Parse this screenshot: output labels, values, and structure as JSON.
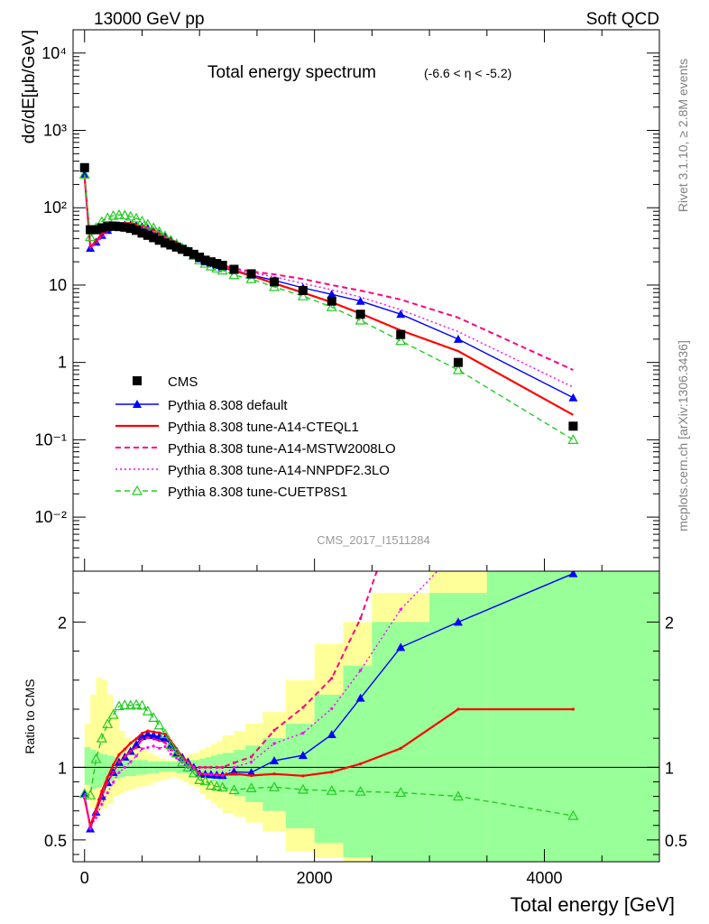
{
  "header": {
    "left": "13000 GeV pp",
    "right": "Soft QCD"
  },
  "side_labels": {
    "rivet": "Rivet 3.1.10, ≥ 2.8M events",
    "site": "mcplots.cern.ch [arXiv:1306.3436]"
  },
  "analysis_tag": "CMS_2017_I1511284",
  "colors": {
    "cms": "#000000",
    "default": "#0000ff",
    "cteql1": "#ff0000",
    "mstw": "#ff0080",
    "nnpdf": "#ff00ff",
    "cuetp8s1": "#22cc22",
    "band_inner": "#99ff99",
    "band_outer": "#ffff99"
  },
  "chart_data": [
    {
      "type": "line",
      "title": "Total energy spectrum",
      "title_suffix": "(-6.6 < η < -5.2)",
      "xlabel": "",
      "ylabel": "dσ/dE[μb/GeV]",
      "yscale": "log",
      "xlim": [
        -100,
        5000
      ],
      "ylim": [
        0.002,
        20000
      ],
      "y_tick_labels": [
        "10⁴",
        "10³",
        "10²",
        "10",
        "1",
        "10⁻¹",
        "10⁻²"
      ],
      "legend_position": "bottom-left",
      "x": [
        0,
        50,
        100,
        150,
        200,
        250,
        300,
        350,
        400,
        450,
        500,
        550,
        600,
        650,
        700,
        750,
        800,
        850,
        900,
        950,
        1000,
        1050,
        1100,
        1150,
        1200,
        1300,
        1450,
        1650,
        1900,
        2150,
        2400,
        2750,
        3250,
        4250
      ],
      "cms": [
        330,
        52,
        52,
        55,
        57,
        58,
        57,
        56,
        54,
        51,
        47,
        44,
        41,
        38,
        35,
        33,
        31,
        29,
        27,
        25,
        23,
        21,
        20,
        19,
        18,
        16,
        14,
        11,
        8.5,
        6.2,
        4.2,
        2.3,
        1.0,
        0.15
      ],
      "series": [
        {
          "name": "Pythia 8.308 default",
          "key": "default",
          "style": "solid",
          "marker": "filled-triangle",
          "color": "#0000ff",
          "values": [
            270,
            30,
            36,
            44,
            51,
            56,
            59,
            60,
            60,
            59,
            57,
            54,
            50,
            46,
            42,
            38,
            34,
            31,
            28,
            25,
            22,
            20,
            19,
            18,
            17,
            15.5,
            13.5,
            11.5,
            9.2,
            7.6,
            6.2,
            4.2,
            2.0,
            0.35
          ]
        },
        {
          "name": "Pythia 8.308 tune-A14-CTEQL1",
          "key": "cteql1",
          "style": "solid",
          "marker": "none",
          "color": "#ff0000",
          "values": [
            260,
            31,
            37,
            46,
            53,
            59,
            62,
            63,
            63,
            61,
            58,
            55,
            51,
            47,
            43,
            39,
            35,
            31,
            28,
            25,
            22,
            20,
            19,
            18,
            17,
            15.3,
            13.2,
            10.5,
            8.0,
            6.0,
            4.3,
            2.6,
            1.4,
            0.21
          ]
        },
        {
          "name": "Pythia 8.308 tune-A14-MSTW2008LO",
          "key": "mstw",
          "style": "dashed",
          "marker": "none",
          "color": "#ff0080",
          "values": [
            262,
            31,
            36,
            44,
            51,
            56,
            59,
            60,
            60,
            58,
            56,
            53,
            49,
            45,
            41,
            37,
            34,
            31,
            28,
            25,
            23,
            21,
            20,
            19,
            18,
            16.5,
            15.0,
            13.8,
            12.0,
            10.0,
            8.5,
            6.5,
            3.8,
            0.8
          ]
        },
        {
          "name": "Pythia 8.308 tune-A14-NNPDF2.3LO",
          "key": "nnpdf",
          "style": "dotted",
          "marker": "none",
          "color": "#ff00ff",
          "values": [
            265,
            30,
            34,
            41,
            47,
            52,
            55,
            56,
            56,
            55,
            53,
            50,
            47,
            43,
            40,
            36,
            33,
            30,
            27,
            25,
            22,
            20,
            19,
            18,
            17,
            16,
            14.5,
            12.8,
            10.5,
            8.7,
            7.0,
            4.8,
            2.5,
            0.48
          ]
        },
        {
          "name": "Pythia 8.308 tune-CUETP8S1",
          "key": "cuetp8s1",
          "style": "dashed",
          "marker": "open-triangle",
          "color": "#22cc22",
          "values": [
            270,
            42,
            55,
            66,
            74,
            79,
            81,
            80,
            77,
            73,
            67,
            61,
            55,
            49,
            43,
            38,
            34,
            30,
            27,
            24,
            21,
            19,
            17.5,
            16.5,
            15.5,
            13.5,
            12.0,
            9.5,
            7.2,
            5.2,
            3.5,
            1.9,
            0.8,
            0.1
          ]
        }
      ]
    },
    {
      "type": "line",
      "title": "",
      "xlabel": "Total energy [GeV]",
      "ylabel": "Ratio to CMS",
      "xlim": [
        -100,
        5000
      ],
      "ylim": [
        0.35,
        2.35
      ],
      "x_ticks": [
        0,
        2000,
        4000
      ],
      "y_ticks": [
        0.5,
        1,
        2
      ],
      "reference_line": 1,
      "band_edges": [
        -100,
        0,
        50,
        100,
        150,
        200,
        250,
        300,
        350,
        400,
        450,
        500,
        550,
        600,
        650,
        700,
        750,
        800,
        850,
        900,
        950,
        1000,
        1050,
        1100,
        1150,
        1200,
        1300,
        1400,
        1550,
        1750,
        2000,
        2250,
        2500,
        3000,
        3500,
        5000
      ],
      "band_outer_lo": [
        null,
        0.78,
        0.72,
        0.7,
        0.72,
        0.75,
        0.8,
        0.82,
        0.84,
        0.85,
        0.86,
        0.87,
        0.88,
        0.9,
        0.91,
        0.92,
        0.93,
        0.92,
        0.9,
        0.88,
        0.86,
        0.82,
        0.78,
        0.75,
        0.72,
        0.68,
        0.66,
        0.62,
        0.56,
        0.42,
        0.38,
        0.35,
        0.35,
        0.35,
        0.35
      ],
      "band_outer_hi": [
        null,
        1.3,
        1.5,
        1.62,
        1.6,
        1.5,
        1.35,
        1.25,
        1.2,
        1.18,
        1.15,
        1.12,
        1.1,
        1.08,
        1.06,
        1.05,
        1.05,
        1.06,
        1.08,
        1.09,
        1.1,
        1.12,
        1.14,
        1.16,
        1.18,
        1.22,
        1.25,
        1.3,
        1.38,
        1.6,
        1.85,
        2.0,
        2.2,
        2.35,
        2.35
      ],
      "band_inner_lo": [
        null,
        0.88,
        0.85,
        0.86,
        0.88,
        0.9,
        0.92,
        0.93,
        0.94,
        0.94,
        0.95,
        0.95,
        0.96,
        0.96,
        0.97,
        0.97,
        0.97,
        0.96,
        0.96,
        0.95,
        0.95,
        0.93,
        0.92,
        0.9,
        0.88,
        0.84,
        0.8,
        0.76,
        0.7,
        0.58,
        0.48,
        0.38,
        0.35,
        0.35,
        0.35
      ],
      "band_inner_hi": [
        null,
        1.14,
        1.12,
        1.1,
        1.09,
        1.08,
        1.07,
        1.06,
        1.06,
        1.05,
        1.05,
        1.05,
        1.04,
        1.04,
        1.04,
        1.04,
        1.04,
        1.04,
        1.05,
        1.05,
        1.05,
        1.06,
        1.07,
        1.08,
        1.09,
        1.1,
        1.12,
        1.15,
        1.2,
        1.3,
        1.5,
        1.7,
        2.0,
        2.2,
        2.35
      ]
    }
  ]
}
